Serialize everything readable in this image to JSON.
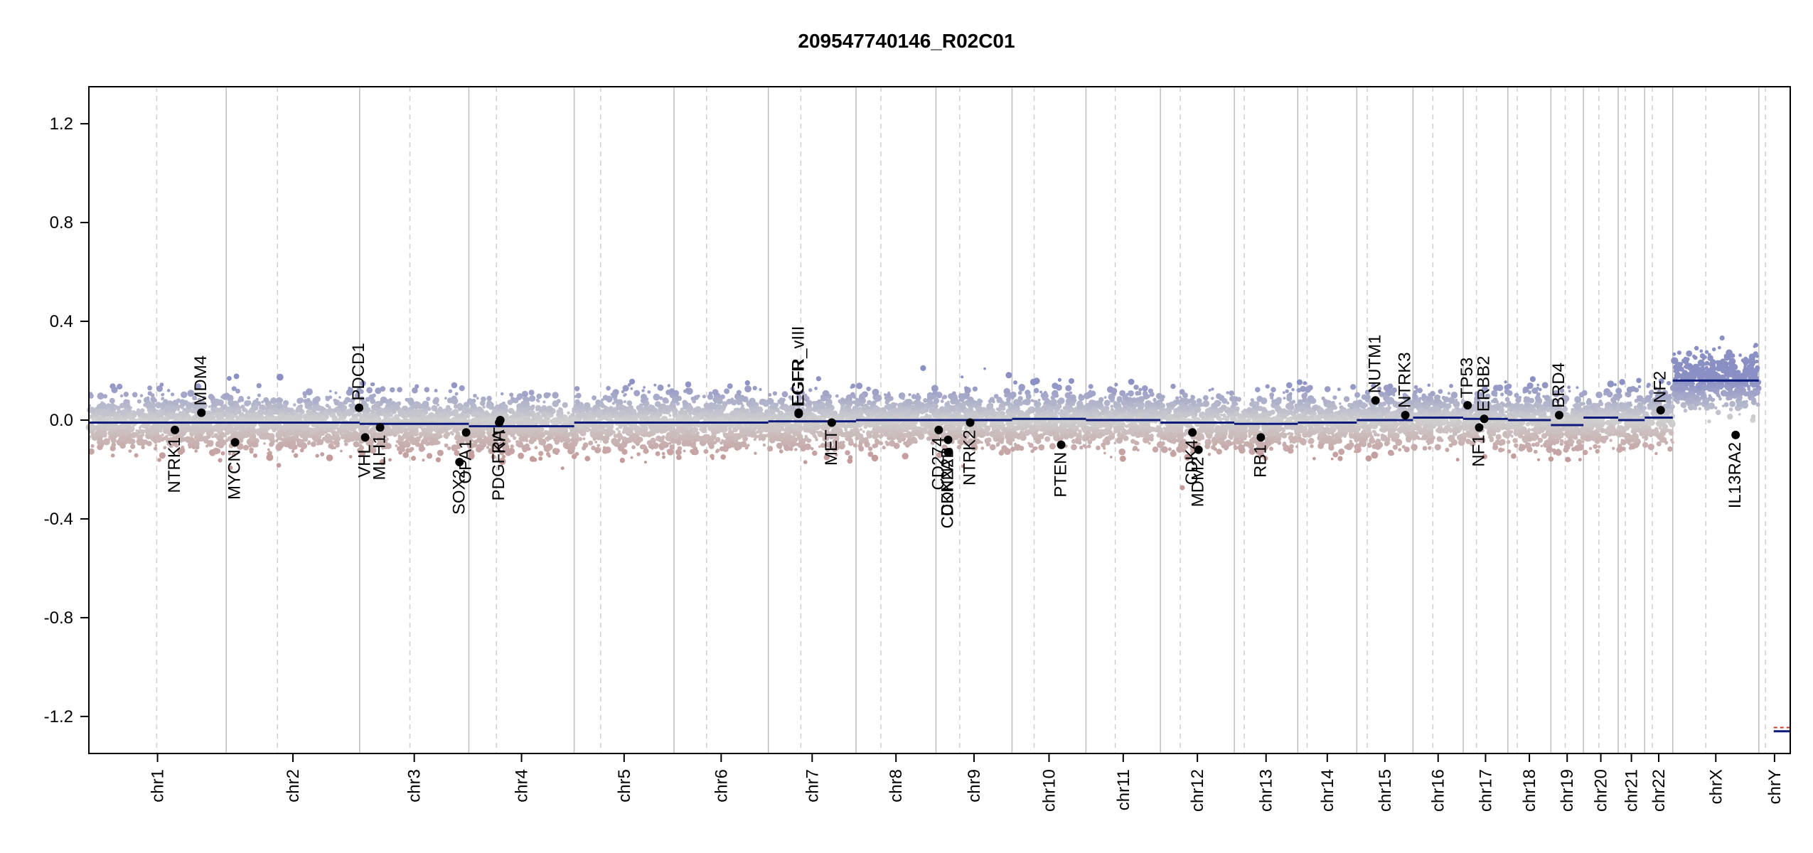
{
  "chart_data": {
    "type": "scatter",
    "title": "209547740146_R02C01",
    "xlabel": "",
    "ylabel": "",
    "ylim": [
      -1.35,
      1.35
    ],
    "y_ticks": [
      1.2,
      0.8,
      0.4,
      0.0,
      -0.4,
      -0.8,
      -1.2
    ],
    "y_tick_labels": [
      "1.2",
      "0.8",
      "0.4",
      "0.0",
      "-0.4",
      "-0.8",
      "-1.2"
    ],
    "grid": "vertical chromosome boundaries (solid) and centromeres (dashed)",
    "colors": {
      "gain": "#8a8fc4",
      "loss": "#c49a9a",
      "neutral": "#cfcfcf",
      "segment": "#0d1a7a",
      "boundary": "#bdbdbd",
      "centromere": "#cfcfcf",
      "gene": "#000000",
      "chrY_marker": "#c0392b"
    },
    "chromosomes": [
      {
        "name": "chr1",
        "start": 0,
        "end": 249,
        "centromere": 123,
        "segments": [
          {
            "from": 0,
            "to": 249,
            "value": -0.01
          }
        ]
      },
      {
        "name": "chr2",
        "start": 249,
        "end": 491,
        "centromere": 342,
        "segments": [
          {
            "from": 249,
            "to": 491,
            "value": -0.01
          }
        ]
      },
      {
        "name": "chr3",
        "start": 491,
        "end": 689,
        "centromere": 582,
        "segments": [
          {
            "from": 491,
            "to": 689,
            "value": -0.015
          }
        ]
      },
      {
        "name": "chr4",
        "start": 689,
        "end": 880,
        "centromere": 739,
        "segments": [
          {
            "from": 689,
            "to": 880,
            "value": -0.025
          }
        ]
      },
      {
        "name": "chr5",
        "start": 880,
        "end": 1061,
        "centromere": 928,
        "segments": [
          {
            "from": 880,
            "to": 1061,
            "value": -0.01
          }
        ]
      },
      {
        "name": "chr6",
        "start": 1061,
        "end": 1232,
        "centromere": 1120,
        "segments": [
          {
            "from": 1061,
            "to": 1232,
            "value": -0.01
          }
        ]
      },
      {
        "name": "chr7",
        "start": 1232,
        "end": 1391,
        "centromere": 1291,
        "segments": [
          {
            "from": 1232,
            "to": 1391,
            "value": -0.005
          }
        ]
      },
      {
        "name": "chr8",
        "start": 1391,
        "end": 1536,
        "centromere": 1436,
        "segments": [
          {
            "from": 1391,
            "to": 1536,
            "value": 0.0
          }
        ]
      },
      {
        "name": "chr9",
        "start": 1536,
        "end": 1674,
        "centromere": 1579,
        "segments": [
          {
            "from": 1536,
            "to": 1674,
            "value": 0.0
          }
        ]
      },
      {
        "name": "chr10",
        "start": 1674,
        "end": 1808,
        "centromere": 1714,
        "segments": [
          {
            "from": 1674,
            "to": 1808,
            "value": 0.005
          }
        ]
      },
      {
        "name": "chr11",
        "start": 1808,
        "end": 1943,
        "centromere": 1861,
        "segments": [
          {
            "from": 1808,
            "to": 1943,
            "value": 0.0
          }
        ]
      },
      {
        "name": "chr12",
        "start": 1943,
        "end": 2077,
        "centromere": 1979,
        "segments": [
          {
            "from": 1943,
            "to": 2077,
            "value": -0.01
          }
        ]
      },
      {
        "name": "chr13",
        "start": 2077,
        "end": 2192,
        "centromere": 2095,
        "segments": [
          {
            "from": 2077,
            "to": 2192,
            "value": -0.015
          }
        ]
      },
      {
        "name": "chr14",
        "start": 2192,
        "end": 2299,
        "centromere": 2209,
        "segments": [
          {
            "from": 2192,
            "to": 2299,
            "value": -0.01
          }
        ]
      },
      {
        "name": "chr15",
        "start": 2299,
        "end": 2401,
        "centromere": 2318,
        "segments": [
          {
            "from": 2299,
            "to": 2401,
            "value": 0.0
          }
        ]
      },
      {
        "name": "chr16",
        "start": 2401,
        "end": 2492,
        "centromere": 2437,
        "segments": [
          {
            "from": 2401,
            "to": 2492,
            "value": 0.01
          }
        ]
      },
      {
        "name": "chr17",
        "start": 2492,
        "end": 2573,
        "centromere": 2516,
        "segments": [
          {
            "from": 2492,
            "to": 2573,
            "value": 0.005
          }
        ]
      },
      {
        "name": "chr18",
        "start": 2573,
        "end": 2651,
        "centromere": 2590,
        "segments": [
          {
            "from": 2573,
            "to": 2651,
            "value": 0.0
          }
        ]
      },
      {
        "name": "chr19",
        "start": 2651,
        "end": 2710,
        "centromere": 2677,
        "segments": [
          {
            "from": 2651,
            "to": 2710,
            "value": -0.02
          }
        ]
      },
      {
        "name": "chr20",
        "start": 2710,
        "end": 2773,
        "centromere": 2738,
        "segments": [
          {
            "from": 2710,
            "to": 2773,
            "value": 0.01
          }
        ]
      },
      {
        "name": "chr21",
        "start": 2773,
        "end": 2821,
        "centromere": 2786,
        "segments": [
          {
            "from": 2773,
            "to": 2821,
            "value": 0.0
          }
        ]
      },
      {
        "name": "chr22",
        "start": 2821,
        "end": 2872,
        "centromere": 2835,
        "segments": [
          {
            "from": 2821,
            "to": 2872,
            "value": 0.01
          }
        ]
      },
      {
        "name": "chrX",
        "start": 2872,
        "end": 3028,
        "centromere": 2932,
        "segments": [
          {
            "from": 2872,
            "to": 3028,
            "value": 0.16
          }
        ]
      },
      {
        "name": "chrY",
        "start": 3028,
        "end": 3085,
        "centromere": 3040,
        "segments": [
          {
            "from": 3055,
            "to": 3085,
            "value": -1.26
          }
        ]
      }
    ],
    "genes": [
      {
        "name": "NTRK1",
        "pos": 156,
        "value": -0.04,
        "label_side": "below"
      },
      {
        "name": "MDM4",
        "pos": 204,
        "value": 0.03,
        "label_side": "above"
      },
      {
        "name": "MYCN",
        "pos": 265,
        "value": -0.09,
        "label_side": "below"
      },
      {
        "name": "PDCD1",
        "pos": 490,
        "value": 0.05,
        "label_side": "above"
      },
      {
        "name": "VHL",
        "pos": 501,
        "value": -0.07,
        "label_side": "below"
      },
      {
        "name": "MLH1",
        "pos": 528,
        "value": -0.03,
        "label_side": "below"
      },
      {
        "name": "SOX2",
        "pos": 672,
        "value": -0.17,
        "label_side": "below"
      },
      {
        "name": "OPA1",
        "pos": 684,
        "value": -0.05,
        "label_side": "below"
      },
      {
        "name": "PDGFRA",
        "pos": 744,
        "value": -0.01,
        "label_side": "below"
      },
      {
        "name": "KIT",
        "pos": 746,
        "value": 0.0,
        "label_side": "below"
      },
      {
        "name": "EGFR",
        "pos": 1287,
        "value": 0.025,
        "label_side": "above"
      },
      {
        "name": "EGFR_vIII",
        "pos": 1287,
        "value": 0.03,
        "label_side": "above"
      },
      {
        "name": "MET",
        "pos": 1347,
        "value": -0.01,
        "label_side": "below"
      },
      {
        "name": "CD274",
        "pos": 1541,
        "value": -0.04,
        "label_side": "below"
      },
      {
        "name": "CDKN2A",
        "pos": 1558,
        "value": -0.13,
        "label_side": "below"
      },
      {
        "name": "CDKN2B",
        "pos": 1558,
        "value": -0.08,
        "label_side": "below"
      },
      {
        "name": "NTRK2",
        "pos": 1598,
        "value": -0.01,
        "label_side": "below"
      },
      {
        "name": "PTEN",
        "pos": 1763,
        "value": -0.1,
        "label_side": "below"
      },
      {
        "name": "CDK4",
        "pos": 2001,
        "value": -0.05,
        "label_side": "below"
      },
      {
        "name": "MDM2",
        "pos": 2012,
        "value": -0.12,
        "label_side": "below"
      },
      {
        "name": "RB1",
        "pos": 2125,
        "value": -0.07,
        "label_side": "below"
      },
      {
        "name": "NUTM1",
        "pos": 2333,
        "value": 0.08,
        "label_side": "above"
      },
      {
        "name": "NTRK3",
        "pos": 2387,
        "value": 0.02,
        "label_side": "above"
      },
      {
        "name": "TP53",
        "pos": 2500,
        "value": 0.06,
        "label_side": "above"
      },
      {
        "name": "NF1",
        "pos": 2521,
        "value": -0.03,
        "label_side": "below"
      },
      {
        "name": "ERBB2",
        "pos": 2530,
        "value": 0.005,
        "label_side": "above"
      },
      {
        "name": "BRD4",
        "pos": 2666,
        "value": 0.02,
        "label_side": "above"
      },
      {
        "name": "NF2",
        "pos": 2850,
        "value": 0.04,
        "label_side": "above"
      },
      {
        "name": "IL13RA2",
        "pos": 2986,
        "value": -0.06,
        "label_side": "below"
      }
    ]
  }
}
